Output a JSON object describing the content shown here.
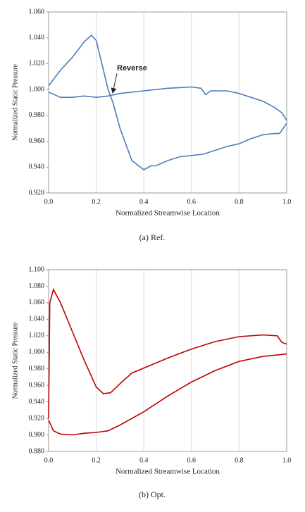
{
  "chart_data": [
    {
      "type": "line",
      "y_label": "Normalized Static Pressure",
      "x_label": "Normalized Streamwise Location",
      "caption": "(a)  Ref.",
      "annotation": "Reverse",
      "grid": "x",
      "xlim": [
        0,
        1
      ],
      "ylim": [
        0.92,
        1.06
      ],
      "xticks": [
        {
          "value": 0,
          "label": "0.0"
        },
        0.2,
        0.4,
        0.6,
        0.8,
        {
          "value": 1,
          "label": "1.0"
        }
      ],
      "yticks": [
        {
          "value": 0.92,
          "label": "0.920"
        },
        {
          "value": 0.94,
          "label": "0.940"
        },
        {
          "value": 0.96,
          "label": "0.960"
        },
        {
          "value": 0.98,
          "label": "0.980"
        },
        {
          "value": 1.0,
          "label": "1.000"
        },
        {
          "value": 1.02,
          "label": "1.020"
        },
        {
          "value": 1.04,
          "label": "1.040"
        },
        {
          "value": 1.06,
          "label": "1.060"
        }
      ],
      "series": [
        {
          "color": "#4a7ebb",
          "x": [
            0,
            0.05,
            0.1,
            0.15,
            0.18,
            0.2,
            0.25,
            0.27,
            0.3,
            0.35,
            0.4,
            0.43,
            0.45,
            0.5,
            0.55,
            0.6,
            0.65,
            0.7,
            0.75,
            0.8,
            0.85,
            0.9,
            0.95,
            0.97,
            1.0
          ],
          "values": [
            1.003,
            1.015,
            1.025,
            1.037,
            1.042,
            1.038,
            1.0,
            0.99,
            0.97,
            0.945,
            0.938,
            0.941,
            0.941,
            0.945,
            0.948,
            0.949,
            0.95,
            0.953,
            0.956,
            0.958,
            0.962,
            0.965,
            0.966,
            0.966,
            0.974
          ]
        },
        {
          "color": "#4a7ebb",
          "x": [
            0,
            0.05,
            0.1,
            0.15,
            0.2,
            0.25,
            0.3,
            0.4,
            0.5,
            0.6,
            0.64,
            0.66,
            0.68,
            0.75,
            0.8,
            0.9,
            0.95,
            0.98,
            1.0
          ],
          "values": [
            0.998,
            0.994,
            0.994,
            0.995,
            0.994,
            0.995,
            0.997,
            0.999,
            1.001,
            1.002,
            1.001,
            0.996,
            0.999,
            0.999,
            0.997,
            0.991,
            0.986,
            0.982,
            0.976
          ]
        }
      ]
    },
    {
      "type": "line",
      "y_label": "Normalized Static Pressure",
      "x_label": "Normalized Streamwise Location",
      "caption": "(b)  Opt.",
      "grid": "x",
      "xlim": [
        0,
        1
      ],
      "ylim": [
        0.88,
        1.1
      ],
      "xticks": [
        {
          "value": 0,
          "label": "0.0"
        },
        0.2,
        0.4,
        0.6,
        0.8,
        {
          "value": 1,
          "label": "1.0"
        }
      ],
      "yticks": [
        {
          "value": 0.88,
          "label": "0.880"
        },
        {
          "value": 0.9,
          "label": "0.900"
        },
        {
          "value": 0.92,
          "label": "0.920"
        },
        {
          "value": 0.94,
          "label": "0.940"
        },
        {
          "value": 0.96,
          "label": "0.960"
        },
        {
          "value": 0.98,
          "label": "0.980"
        },
        {
          "value": 1.0,
          "label": "1.000"
        },
        {
          "value": 1.02,
          "label": "1.020"
        },
        {
          "value": 1.04,
          "label": "1.040"
        },
        {
          "value": 1.06,
          "label": "1.060"
        },
        {
          "value": 1.08,
          "label": "1.080"
        },
        {
          "value": 1.1,
          "label": "1.100"
        }
      ],
      "series": [
        {
          "color": "#c00000",
          "x": [
            0,
            0.005,
            0.02,
            0.05,
            0.1,
            0.15,
            0.2,
            0.23,
            0.26,
            0.3,
            0.35,
            0.4,
            0.5,
            0.6,
            0.7,
            0.8,
            0.9,
            0.96,
            0.98,
            1.0
          ],
          "values": [
            0.92,
            1.06,
            1.076,
            1.06,
            1.025,
            0.99,
            0.958,
            0.95,
            0.951,
            0.962,
            0.975,
            0.981,
            0.993,
            1.004,
            1.013,
            1.019,
            1.021,
            1.02,
            1.012,
            1.01
          ]
        },
        {
          "color": "#c00000",
          "x": [
            0,
            0.02,
            0.05,
            0.1,
            0.15,
            0.2,
            0.25,
            0.3,
            0.4,
            0.5,
            0.6,
            0.7,
            0.8,
            0.9,
            1.0
          ],
          "values": [
            0.918,
            0.905,
            0.901,
            0.9,
            0.902,
            0.903,
            0.905,
            0.912,
            0.928,
            0.947,
            0.964,
            0.978,
            0.989,
            0.995,
            0.998
          ]
        }
      ]
    }
  ]
}
